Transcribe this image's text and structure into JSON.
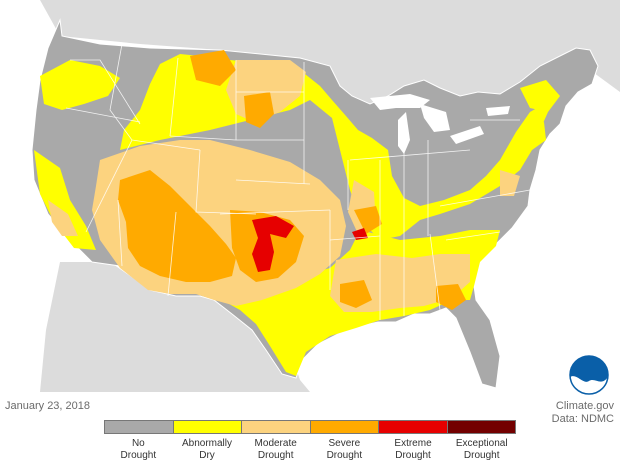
{
  "map": {
    "date": "January 23, 2018",
    "credit_line1": "Climate.gov",
    "credit_line2": "Data: NDMC",
    "logo_text": "NOAA"
  },
  "legend": {
    "categories": [
      {
        "line1": "No",
        "line2": "Drought",
        "color": "#a9a9a9"
      },
      {
        "line1": "Abnormally",
        "line2": "Dry",
        "color": "#ffff00"
      },
      {
        "line1": "Moderate",
        "line2": "Drought",
        "color": "#fcd37f"
      },
      {
        "line1": "Severe",
        "line2": "Drought",
        "color": "#ffaa00"
      },
      {
        "line1": "Extreme",
        "line2": "Drought",
        "color": "#e60000"
      },
      {
        "line1": "Exceptional",
        "line2": "Drought",
        "color": "#730000"
      }
    ]
  },
  "colors": {
    "land_outside": "#d9d9d9",
    "water": "#ffffff",
    "state_border": "#ffffff"
  }
}
